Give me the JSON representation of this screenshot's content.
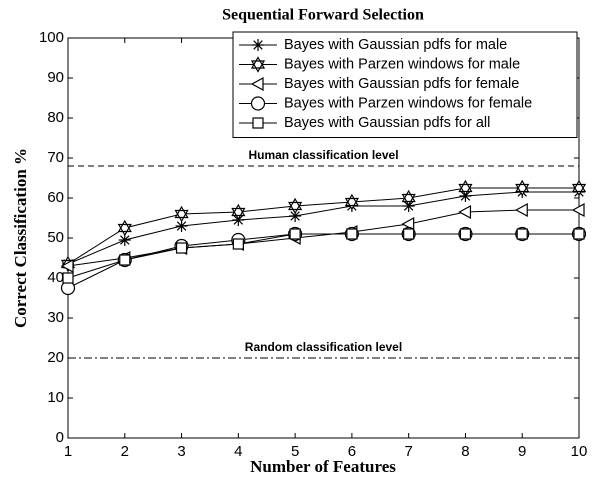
{
  "chart_data": {
    "type": "line",
    "title": "Sequential Forward Selection",
    "xlabel": "Number of Features",
    "ylabel": "Correct Classification %",
    "x": [
      1,
      2,
      3,
      4,
      5,
      6,
      7,
      8,
      9,
      10
    ],
    "xlim": [
      1,
      10
    ],
    "xticks": [
      1,
      2,
      3,
      4,
      5,
      6,
      7,
      8,
      9,
      10
    ],
    "ylim": [
      0,
      100
    ],
    "yticks": [
      0,
      10,
      20,
      30,
      40,
      50,
      60,
      70,
      80,
      90,
      100
    ],
    "grid": false,
    "legend": "upper right",
    "series": [
      {
        "name": "Bayes with Gaussian pdfs for male",
        "color": "#000000",
        "marker": "asterisk",
        "values": [
          43.5,
          49.5,
          53,
          54.5,
          55.5,
          58,
          58,
          60.5,
          61.5,
          61.5
        ]
      },
      {
        "name": "Bayes with Parzen windows for male",
        "color": "#000000",
        "marker": "hexagram",
        "values": [
          43.5,
          52.5,
          56,
          56.5,
          58,
          59,
          60,
          62.5,
          62.5,
          62.5
        ]
      },
      {
        "name": "Bayes with Gaussian pdfs for female",
        "color": "#000000",
        "marker": "triangle-left",
        "values": [
          43,
          45,
          47.5,
          48.5,
          50,
          51.5,
          53.5,
          56.5,
          57,
          57
        ]
      },
      {
        "name": "Bayes with Parzen windows for female",
        "color": "#000000",
        "marker": "circle",
        "values": [
          37.5,
          44.5,
          48,
          49.5,
          51,
          51,
          51,
          51,
          51,
          51
        ]
      },
      {
        "name": "Bayes with Gaussian pdfs for all",
        "color": "#000000",
        "marker": "square",
        "values": [
          40,
          44.5,
          47.5,
          48.5,
          51,
          51,
          51,
          51,
          51,
          51
        ]
      }
    ],
    "reference_lines": [
      {
        "value": 68,
        "label": "Human classification level",
        "style": "dashed"
      },
      {
        "value": 20,
        "label": "Random classification level",
        "style": "dashdot"
      }
    ]
  }
}
